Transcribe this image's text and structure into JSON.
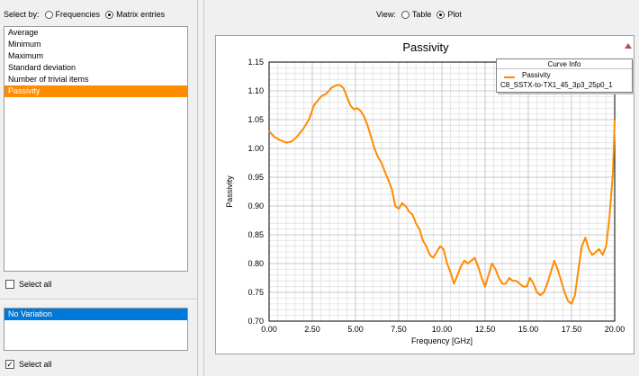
{
  "left_panel": {
    "select_by_label": "Select by:",
    "options": [
      {
        "label": "Frequencies",
        "selected": false
      },
      {
        "label": "Matrix entries",
        "selected": true
      }
    ],
    "stats_items": [
      {
        "label": "Average",
        "selected": false
      },
      {
        "label": "Minimum",
        "selected": false
      },
      {
        "label": "Maximum",
        "selected": false
      },
      {
        "label": "Standard deviation",
        "selected": false
      },
      {
        "label": "Number of trivial items",
        "selected": false
      },
      {
        "label": "Passivity",
        "selected": true
      }
    ],
    "select_all_1": {
      "label": "Select all",
      "checked": false
    },
    "variation_items": [
      {
        "label": "No Variation",
        "selected": true
      }
    ],
    "select_all_2": {
      "label": "Select all",
      "checked": true
    }
  },
  "right_panel": {
    "view_label": "View:",
    "view_options": [
      {
        "label": "Table",
        "selected": false
      },
      {
        "label": "Plot",
        "selected": true
      }
    ]
  },
  "colors": {
    "accent": "#ff8c00",
    "selection": "#0078d7"
  },
  "chart_data": {
    "type": "line",
    "title": "Passivity",
    "xlabel": "Frequency [GHz]",
    "ylabel": "Passivity",
    "xlim": [
      0,
      20
    ],
    "ylim": [
      0.7,
      1.15
    ],
    "x_ticks": [
      "0.00",
      "2.50",
      "5.00",
      "7.50",
      "10.00",
      "12.50",
      "15.00",
      "17.50",
      "20.00"
    ],
    "y_ticks": [
      "0.70",
      "0.75",
      "0.80",
      "0.85",
      "0.90",
      "0.95",
      "1.00",
      "1.05",
      "1.10",
      "1.15"
    ],
    "grid": true,
    "legend": {
      "title": "Curve Info",
      "placement": "top-right",
      "source": "C8_SSTX-to-TX1_45_3p3_25p0_1"
    },
    "series": [
      {
        "name": "Passivity",
        "color": "#ff8c00",
        "x": [
          0.0,
          0.3,
          0.6,
          1.0,
          1.3,
          1.6,
          2.0,
          2.3,
          2.6,
          3.0,
          3.3,
          3.6,
          3.9,
          4.1,
          4.3,
          4.5,
          4.7,
          4.9,
          5.1,
          5.3,
          5.5,
          5.7,
          5.9,
          6.1,
          6.3,
          6.5,
          6.7,
          6.9,
          7.1,
          7.3,
          7.5,
          7.7,
          7.9,
          8.1,
          8.3,
          8.5,
          8.7,
          8.9,
          9.1,
          9.3,
          9.5,
          9.7,
          9.9,
          10.1,
          10.3,
          10.5,
          10.7,
          10.9,
          11.1,
          11.3,
          11.5,
          11.7,
          11.9,
          12.1,
          12.3,
          12.5,
          12.7,
          12.9,
          13.1,
          13.3,
          13.5,
          13.7,
          13.9,
          14.1,
          14.3,
          14.5,
          14.7,
          14.9,
          15.1,
          15.3,
          15.5,
          15.7,
          15.9,
          16.1,
          16.3,
          16.5,
          16.7,
          16.9,
          17.1,
          17.3,
          17.5,
          17.7,
          17.9,
          18.1,
          18.3,
          18.5,
          18.7,
          18.9,
          19.1,
          19.3,
          19.5,
          19.7,
          19.9,
          20.0
        ],
        "y": [
          1.03,
          1.02,
          1.015,
          1.01,
          1.012,
          1.02,
          1.035,
          1.05,
          1.075,
          1.09,
          1.095,
          1.105,
          1.11,
          1.11,
          1.105,
          1.09,
          1.075,
          1.068,
          1.07,
          1.065,
          1.055,
          1.04,
          1.02,
          1.0,
          0.985,
          0.975,
          0.96,
          0.945,
          0.93,
          0.9,
          0.895,
          0.905,
          0.9,
          0.89,
          0.885,
          0.87,
          0.86,
          0.84,
          0.83,
          0.815,
          0.81,
          0.82,
          0.83,
          0.825,
          0.8,
          0.785,
          0.765,
          0.78,
          0.795,
          0.805,
          0.8,
          0.805,
          0.81,
          0.795,
          0.775,
          0.76,
          0.78,
          0.8,
          0.79,
          0.775,
          0.765,
          0.765,
          0.775,
          0.77,
          0.77,
          0.765,
          0.76,
          0.76,
          0.775,
          0.765,
          0.75,
          0.745,
          0.75,
          0.765,
          0.785,
          0.805,
          0.79,
          0.77,
          0.75,
          0.735,
          0.73,
          0.745,
          0.79,
          0.83,
          0.845,
          0.825,
          0.815,
          0.82,
          0.825,
          0.815,
          0.83,
          0.88,
          0.96,
          1.05
        ]
      }
    ]
  }
}
